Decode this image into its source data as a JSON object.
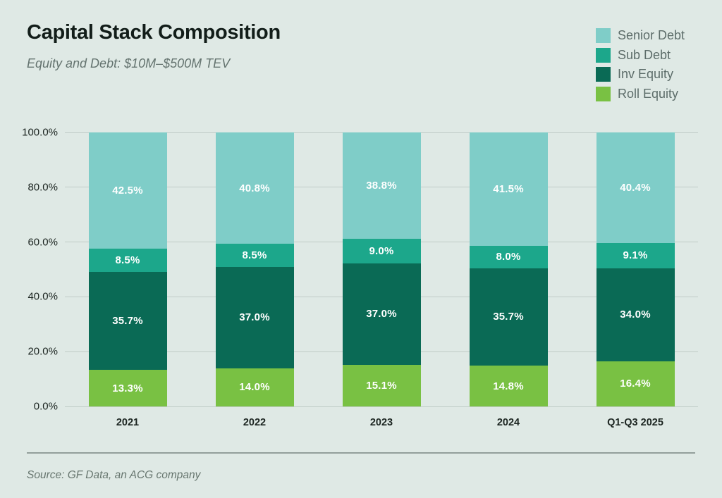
{
  "title": "Capital Stack Composition",
  "subtitle": "Equity and Debt: $10M–$500M TEV",
  "source": "Source: GF Data, an ACG company",
  "colors": {
    "background": "#dfe9e5",
    "gridline": "#c0ccc7",
    "senior_debt": "#7fcdc8",
    "sub_debt": "#1ca78b",
    "inv_equity": "#0a6a55",
    "roll_equity": "#79c143",
    "value_label": "#ffffff"
  },
  "chart_data": {
    "type": "bar",
    "stacked": true,
    "title": "Capital Stack Composition",
    "subtitle": "Equity and Debt: $10M–$500M TEV",
    "xlabel": "",
    "ylabel": "",
    "ylim": [
      0,
      100
    ],
    "grid": true,
    "legend_position": "top-right",
    "categories": [
      "2021",
      "2022",
      "2023",
      "2024",
      "Q1-Q3 2025"
    ],
    "series": [
      {
        "name": "Senior Debt",
        "color": "#7fcdc8",
        "values": [
          42.5,
          40.8,
          38.8,
          41.5,
          40.4
        ],
        "labels": [
          "42.5%",
          "40.8%",
          "38.8%",
          "41.5%",
          "40.4%"
        ]
      },
      {
        "name": "Sub Debt",
        "color": "#1ca78b",
        "values": [
          8.5,
          8.5,
          9.0,
          8.0,
          9.1
        ],
        "labels": [
          "8.5%",
          "8.5%",
          "9.0%",
          "8.0%",
          "9.1%"
        ]
      },
      {
        "name": "Inv Equity",
        "color": "#0a6a55",
        "values": [
          35.7,
          37.0,
          37.0,
          35.7,
          34.0
        ],
        "labels": [
          "35.7%",
          "37.0%",
          "37.0%",
          "35.7%",
          "34.0%"
        ]
      },
      {
        "name": "Roll Equity",
        "color": "#79c143",
        "values": [
          13.3,
          14.0,
          15.1,
          14.8,
          16.4
        ],
        "labels": [
          "13.3%",
          "14.0%",
          "15.1%",
          "14.8%",
          "16.4%"
        ]
      }
    ],
    "y_ticks": [
      {
        "label": "100.0%",
        "value": 100
      },
      {
        "label": "80.0%",
        "value": 80
      },
      {
        "label": "60.0%",
        "value": 60
      },
      {
        "label": "40.0%",
        "value": 40
      },
      {
        "label": "20.0%",
        "value": 20
      },
      {
        "label": "0.0%",
        "value": 0
      }
    ]
  }
}
